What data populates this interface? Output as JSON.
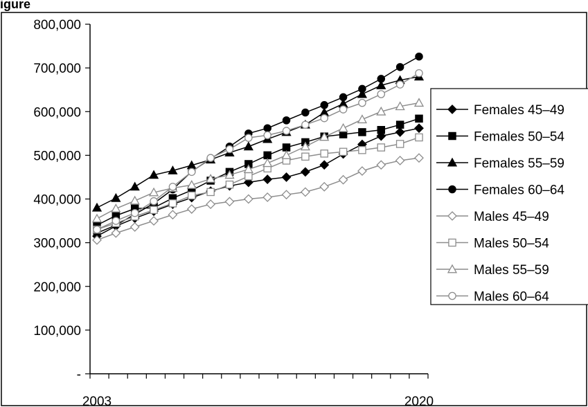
{
  "caption_fragment": "igure",
  "chart_data": {
    "type": "line",
    "x": [
      2003,
      2004,
      2005,
      2006,
      2007,
      2008,
      2009,
      2010,
      2011,
      2012,
      2013,
      2014,
      2015,
      2016,
      2017,
      2018,
      2019,
      2020
    ],
    "x_tick_labels": [
      "2003",
      "2020"
    ],
    "y_tick_labels": [
      "800,000",
      "700,000",
      "600,000",
      "500,000",
      "400,000",
      "300,000",
      "200,000",
      "100,000",
      "-"
    ],
    "y_tick_values": [
      800000,
      700000,
      600000,
      500000,
      400000,
      300000,
      200000,
      100000,
      0
    ],
    "ylim": [
      0,
      800000
    ],
    "grid": false,
    "legend_position": "right",
    "series": [
      {
        "name": "Females 45–49",
        "color": "#000000",
        "marker": "diamond",
        "filled": true,
        "values": [
          315000,
          338000,
          356000,
          372000,
          388000,
          403000,
          418000,
          430000,
          438000,
          445000,
          450000,
          462000,
          478000,
          503000,
          525000,
          544000,
          553000,
          562000
        ]
      },
      {
        "name": "Females 50–54",
        "color": "#000000",
        "marker": "square",
        "filled": true,
        "values": [
          340000,
          362000,
          378000,
          380000,
          402000,
          420000,
          442000,
          462000,
          480000,
          500000,
          518000,
          530000,
          543000,
          548000,
          553000,
          558000,
          570000,
          584000
        ]
      },
      {
        "name": "Females 55–59",
        "color": "#000000",
        "marker": "triangle",
        "filled": true,
        "values": [
          380000,
          402000,
          428000,
          455000,
          465000,
          477000,
          490000,
          506000,
          520000,
          537000,
          553000,
          570000,
          598000,
          618000,
          640000,
          660000,
          672000,
          680000
        ]
      },
      {
        "name": "Females 60–64",
        "color": "#000000",
        "marker": "circle",
        "filled": true,
        "values": [
          322000,
          340000,
          365000,
          390000,
          422000,
          463000,
          492000,
          520000,
          550000,
          562000,
          580000,
          598000,
          615000,
          633000,
          652000,
          675000,
          702000,
          726000
        ]
      },
      {
        "name": "Males 45–49",
        "color": "#8c8c8c",
        "marker": "diamond",
        "filled": false,
        "values": [
          306000,
          322000,
          336000,
          350000,
          364000,
          377000,
          388000,
          394000,
          400000,
          404000,
          410000,
          416000,
          428000,
          444000,
          464000,
          478000,
          488000,
          494000
        ]
      },
      {
        "name": "Males 50–54",
        "color": "#8c8c8c",
        "marker": "square",
        "filled": false,
        "values": [
          330000,
          345000,
          360000,
          375000,
          390000,
          408000,
          416000,
          433000,
          452000,
          470000,
          488000,
          497000,
          504000,
          508000,
          512000,
          518000,
          526000,
          541000
        ]
      },
      {
        "name": "Males 55–59",
        "color": "#8c8c8c",
        "marker": "triangle",
        "filled": false,
        "values": [
          355000,
          378000,
          396000,
          415000,
          425000,
          432000,
          446000,
          455000,
          468000,
          482000,
          500000,
          520000,
          542000,
          562000,
          582000,
          600000,
          612000,
          620000
        ]
      },
      {
        "name": "Males 60–64",
        "color": "#8c8c8c",
        "marker": "circle",
        "filled": false,
        "values": [
          330000,
          350000,
          368000,
          395000,
          428000,
          462000,
          494000,
          514000,
          540000,
          546000,
          556000,
          570000,
          585000,
          605000,
          620000,
          640000,
          662000,
          688000
        ]
      }
    ]
  }
}
